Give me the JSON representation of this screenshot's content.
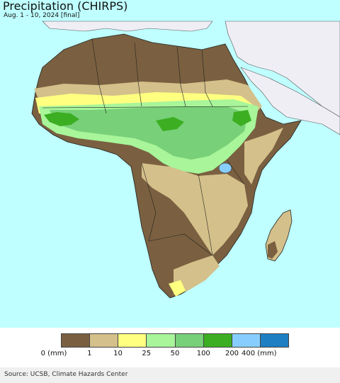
{
  "header": {
    "title": "Precipitation (CHIRPS)",
    "subtitle": "Aug. 1 - 10, 2024 [final]"
  },
  "legend": {
    "colors": [
      "#7a6040",
      "#d4c08a",
      "#ffff80",
      "#a8f59a",
      "#78d078",
      "#3cae22",
      "#87ceff",
      "#1e7fc2"
    ],
    "labels": [
      "0 (mm)",
      "1",
      "10",
      "25",
      "50",
      "100",
      "200",
      "400 (mm)"
    ]
  },
  "map_colors": {
    "ocean": "#bfffff",
    "other_land": "#f0eef5",
    "dry": "#7a6040",
    "low": "#d4c08a",
    "light": "#ffff80",
    "moderate": "#a8f59a",
    "wet": "#78d078",
    "heavy": "#3cae22",
    "borders": "#222222"
  },
  "footer": {
    "source": "Source: UCSB, Climate Hazards Center"
  }
}
